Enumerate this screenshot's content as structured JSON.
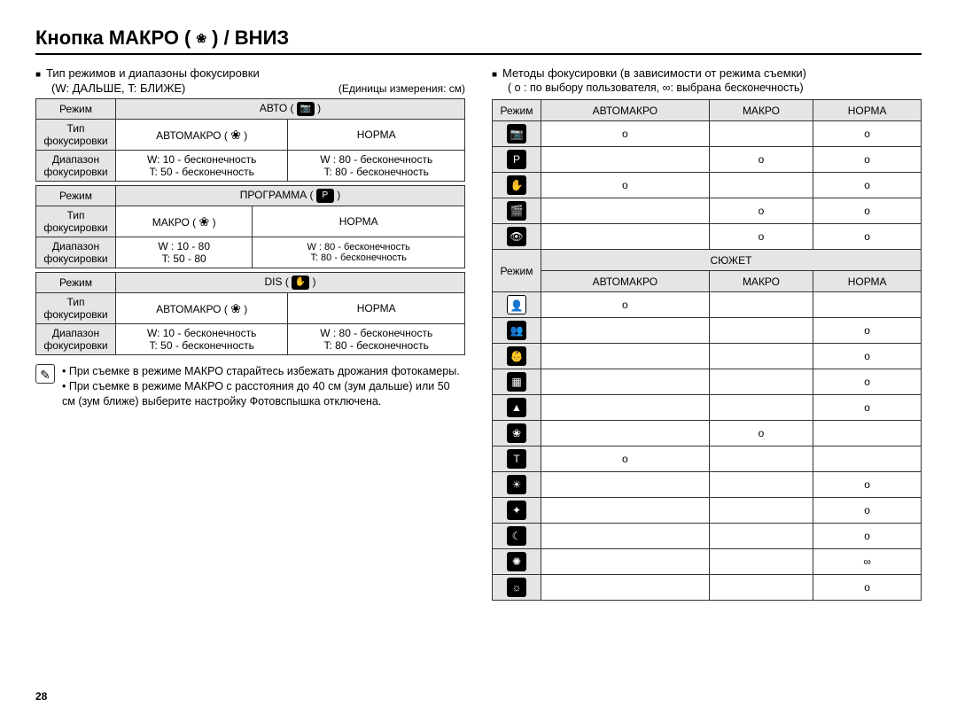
{
  "title_prefix": "Кнопка МАКРО ( ",
  "title_suffix": " ) / ВНИЗ",
  "page_number": "28",
  "left": {
    "intro": "Тип режимов и диапазоны фокусировки",
    "wt_note": "(W: ДАЛЬШЕ, T: БЛИЖЕ)",
    "units": "(Единицы измерения: см)",
    "row_labels": {
      "mode": "Режим",
      "focus_type": "Тип фокусировки",
      "range": "Диапазон фокусировки"
    },
    "tables": [
      {
        "mode_label": "АВТО",
        "col1": "АВТОМАКРО",
        "col2": "НОРМА",
        "r1": "W: 10 - бесконечность\nT: 50 - бесконечность",
        "r2": "W : 80 - бесконечность\nT: 80 - бесконечность"
      },
      {
        "mode_label": "ПРОГРАММА",
        "col1": "МАКРО",
        "col2": "НОРМА",
        "r1": "W : 10 - 80\nT: 50 - 80",
        "r2": "W : 80 - бесконечность\nT: 80 - бесконечность"
      },
      {
        "mode_label": "DIS",
        "col1": "АВТОМАКРО",
        "col2": "НОРМА",
        "r1": "W: 10 - бесконечность\nT: 50 - бесконечность",
        "r2": "W : 80 - бесконечность\nT: 80 - бесконечность"
      }
    ],
    "notes": [
      "При съемке в режиме МАКРО старайтесь избежать дрожания фотокамеры.",
      "При съемке в режиме МАКРО с расстояния до 40 см (зум дальше) или 50 см (зум ближе) выберите настройку Фотовспышка отключена."
    ]
  },
  "right": {
    "intro": "Методы фокусировки (в зависимости от режима съемки)",
    "legend": "( o : по выбору пользователя, ∞: выбрана бесконечность)",
    "headers": {
      "mode": "Режим",
      "automacro": "АВТОМАКРО",
      "macro": "МАКРО",
      "norma": "НОРМА",
      "scene": "СЮЖЕТ"
    },
    "rows_top": [
      {
        "glyph": "📷",
        "a": "o",
        "m": "",
        "n": "o"
      },
      {
        "glyph": "P",
        "a": "",
        "m": "o",
        "n": "o"
      },
      {
        "glyph": "✋",
        "a": "o",
        "m": "",
        "n": "o"
      },
      {
        "glyph": "🎬",
        "a": "",
        "m": "o",
        "n": "o"
      },
      {
        "glyph": "👁",
        "a": "",
        "m": "o",
        "n": "o"
      }
    ],
    "rows_bottom": [
      {
        "glyph": "👤",
        "light": true,
        "a": "o",
        "m": "",
        "n": ""
      },
      {
        "glyph": "👥",
        "light": false,
        "a": "",
        "m": "",
        "n": "o"
      },
      {
        "glyph": "👶",
        "light": false,
        "a": "",
        "m": "",
        "n": "o"
      },
      {
        "glyph": "▦",
        "light": false,
        "a": "",
        "m": "",
        "n": "o"
      },
      {
        "glyph": "▲",
        "light": false,
        "a": "",
        "m": "",
        "n": "o"
      },
      {
        "glyph": "❀",
        "light": false,
        "a": "",
        "m": "o",
        "n": ""
      },
      {
        "glyph": "T",
        "light": false,
        "a": "o",
        "m": "",
        "n": ""
      },
      {
        "glyph": "☀",
        "light": false,
        "a": "",
        "m": "",
        "n": "o"
      },
      {
        "glyph": "✦",
        "light": false,
        "a": "",
        "m": "",
        "n": "o"
      },
      {
        "glyph": "☾",
        "light": false,
        "a": "",
        "m": "",
        "n": "o"
      },
      {
        "glyph": "✺",
        "light": false,
        "a": "",
        "m": "",
        "n": "∞"
      },
      {
        "glyph": "☼",
        "light": false,
        "a": "",
        "m": "",
        "n": "o"
      }
    ]
  }
}
